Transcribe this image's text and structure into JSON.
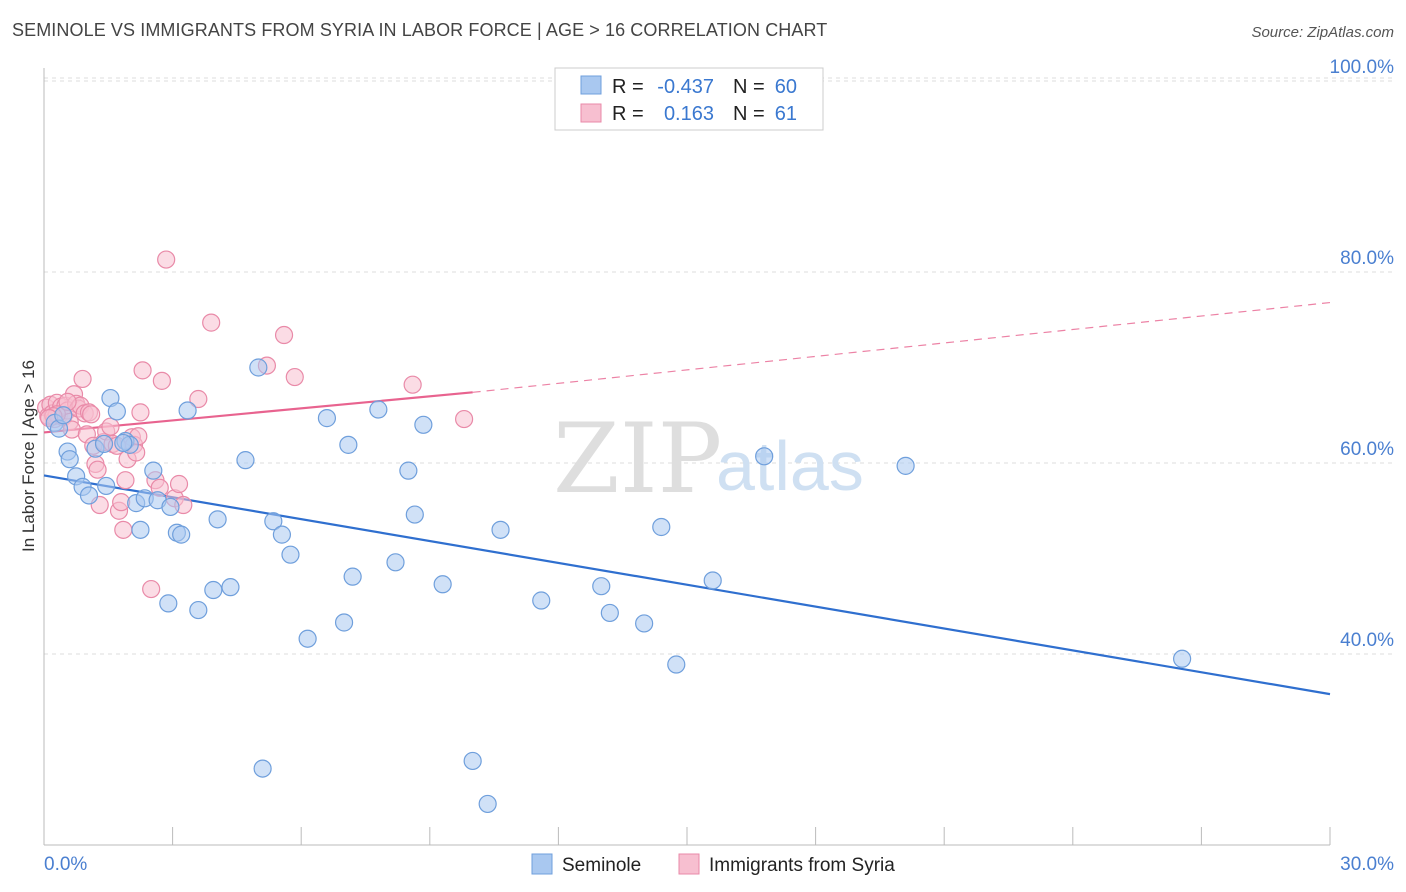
{
  "header": {
    "title": "SEMINOLE VS IMMIGRANTS FROM SYRIA IN LABOR FORCE | AGE > 16 CORRELATION CHART",
    "source": "Source: ZipAtlas.com"
  },
  "watermark": {
    "part1": "ZIP",
    "part2": "atlas"
  },
  "colors": {
    "seminole_fill": "#a9c8f0",
    "seminole_stroke": "#6f9fdc",
    "seminole_line": "#2f6fcf",
    "syria_fill": "#f7bfd0",
    "syria_stroke": "#e98aa8",
    "syria_line": "#e8638f",
    "tick_text": "#4a7fd0",
    "grid": "#dddddd"
  },
  "legend": {
    "rows": [
      {
        "r_label": "R =",
        "r_value": "-0.437",
        "n_label": "N =",
        "n_value": "60",
        "series": "Seminole"
      },
      {
        "r_label": "R =",
        "r_value": "0.163",
        "n_label": "N =",
        "n_value": "61",
        "series": "Immigrants from Syria"
      }
    ]
  },
  "chart_data": {
    "type": "scatter",
    "title": "SEMINOLE VS IMMIGRANTS FROM SYRIA IN LABOR FORCE | AGE > 16 CORRELATION CHART",
    "xlabel": "",
    "ylabel": "In Labor Force | Age > 16",
    "xlim": [
      0,
      30
    ],
    "ylim": [
      20,
      104
    ],
    "x_tick_labels": [
      "0.0%",
      "30.0%"
    ],
    "y_ticks": [
      40,
      60,
      80,
      100
    ],
    "y_tick_labels": [
      "40.0%",
      "60.0%",
      "80.0%",
      "100.0%"
    ],
    "grid": true,
    "legend_position": "top-center",
    "series": [
      {
        "name": "Seminole",
        "trend": {
          "x": [
            0,
            30
          ],
          "y": [
            58.7,
            35.8
          ]
        },
        "points": [
          [
            0.25,
            64.2
          ],
          [
            0.55,
            61.2
          ],
          [
            0.6,
            60.4
          ],
          [
            0.75,
            58.6
          ],
          [
            0.9,
            57.5
          ],
          [
            1.05,
            56.6
          ],
          [
            1.2,
            61.5
          ],
          [
            1.4,
            62.0
          ],
          [
            1.45,
            57.6
          ],
          [
            1.55,
            66.8
          ],
          [
            1.7,
            65.4
          ],
          [
            1.9,
            62.3
          ],
          [
            2.0,
            61.9
          ],
          [
            2.15,
            55.8
          ],
          [
            2.25,
            53.0
          ],
          [
            2.35,
            56.3
          ],
          [
            2.55,
            59.2
          ],
          [
            2.65,
            56.1
          ],
          [
            2.95,
            55.4
          ],
          [
            2.9,
            45.3
          ],
          [
            3.1,
            52.7
          ],
          [
            3.2,
            52.5
          ],
          [
            3.35,
            65.5
          ],
          [
            3.6,
            44.6
          ],
          [
            3.95,
            46.7
          ],
          [
            4.05,
            54.1
          ],
          [
            4.35,
            47.0
          ],
          [
            4.7,
            60.3
          ],
          [
            5.0,
            70.0
          ],
          [
            5.1,
            28.0
          ],
          [
            5.35,
            53.9
          ],
          [
            5.55,
            52.5
          ],
          [
            5.75,
            50.4
          ],
          [
            6.15,
            41.6
          ],
          [
            6.6,
            64.7
          ],
          [
            7.0,
            43.3
          ],
          [
            7.1,
            61.9
          ],
          [
            7.2,
            48.1
          ],
          [
            7.8,
            65.6
          ],
          [
            8.2,
            49.6
          ],
          [
            8.5,
            59.2
          ],
          [
            8.65,
            54.6
          ],
          [
            8.85,
            64.0
          ],
          [
            9.3,
            47.3
          ],
          [
            10.0,
            28.8
          ],
          [
            10.35,
            24.3
          ],
          [
            10.65,
            53.0
          ],
          [
            11.6,
            45.6
          ],
          [
            13.0,
            47.1
          ],
          [
            13.2,
            44.3
          ],
          [
            14.0,
            43.2
          ],
          [
            14.4,
            53.3
          ],
          [
            14.75,
            38.9
          ],
          [
            15.6,
            47.7
          ],
          [
            16.8,
            60.7
          ],
          [
            20.1,
            59.7
          ],
          [
            26.55,
            39.5
          ],
          [
            0.35,
            63.6
          ],
          [
            0.45,
            65.0
          ],
          [
            1.85,
            62.1
          ]
        ]
      },
      {
        "name": "Immigrants from Syria",
        "trend": {
          "x": [
            0,
            10
          ],
          "y": [
            63.2,
            67.4
          ]
        },
        "trend_extension": {
          "x": [
            10,
            30
          ],
          "y": [
            67.4,
            76.8
          ]
        },
        "points": [
          [
            0.05,
            65.8
          ],
          [
            0.1,
            64.9
          ],
          [
            0.15,
            66.1
          ],
          [
            0.2,
            65.2
          ],
          [
            0.25,
            64.6
          ],
          [
            0.3,
            66.3
          ],
          [
            0.35,
            65.0
          ],
          [
            0.4,
            65.9
          ],
          [
            0.45,
            64.8
          ],
          [
            0.5,
            66.0
          ],
          [
            0.55,
            65.5
          ],
          [
            0.6,
            64.3
          ],
          [
            0.65,
            63.5
          ],
          [
            0.7,
            67.2
          ],
          [
            0.75,
            66.2
          ],
          [
            0.8,
            65.7
          ],
          [
            0.85,
            66.0
          ],
          [
            0.9,
            68.8
          ],
          [
            0.95,
            65.2
          ],
          [
            1.0,
            63.0
          ],
          [
            1.05,
            65.3
          ],
          [
            1.1,
            65.1
          ],
          [
            1.15,
            61.8
          ],
          [
            1.2,
            59.9
          ],
          [
            1.25,
            59.3
          ],
          [
            1.3,
            55.6
          ],
          [
            1.4,
            62.2
          ],
          [
            1.45,
            63.3
          ],
          [
            1.55,
            63.8
          ],
          [
            1.6,
            62.0
          ],
          [
            1.7,
            61.8
          ],
          [
            1.75,
            55.0
          ],
          [
            1.8,
            55.9
          ],
          [
            1.85,
            53.0
          ],
          [
            1.9,
            58.2
          ],
          [
            1.95,
            60.4
          ],
          [
            2.05,
            62.7
          ],
          [
            2.1,
            61.9
          ],
          [
            2.15,
            61.1
          ],
          [
            2.2,
            62.8
          ],
          [
            2.25,
            65.3
          ],
          [
            2.3,
            69.7
          ],
          [
            2.5,
            46.8
          ],
          [
            2.6,
            58.2
          ],
          [
            2.7,
            57.4
          ],
          [
            2.75,
            68.6
          ],
          [
            2.85,
            81.3
          ],
          [
            3.05,
            56.3
          ],
          [
            3.15,
            57.8
          ],
          [
            3.25,
            55.6
          ],
          [
            3.6,
            66.7
          ],
          [
            3.9,
            74.7
          ],
          [
            5.2,
            70.2
          ],
          [
            5.6,
            73.4
          ],
          [
            5.85,
            69.0
          ],
          [
            8.6,
            68.2
          ],
          [
            9.8,
            64.6
          ],
          [
            0.3,
            65.1
          ],
          [
            0.22,
            64.9
          ],
          [
            0.12,
            64.7
          ],
          [
            0.55,
            66.4
          ]
        ]
      }
    ]
  }
}
